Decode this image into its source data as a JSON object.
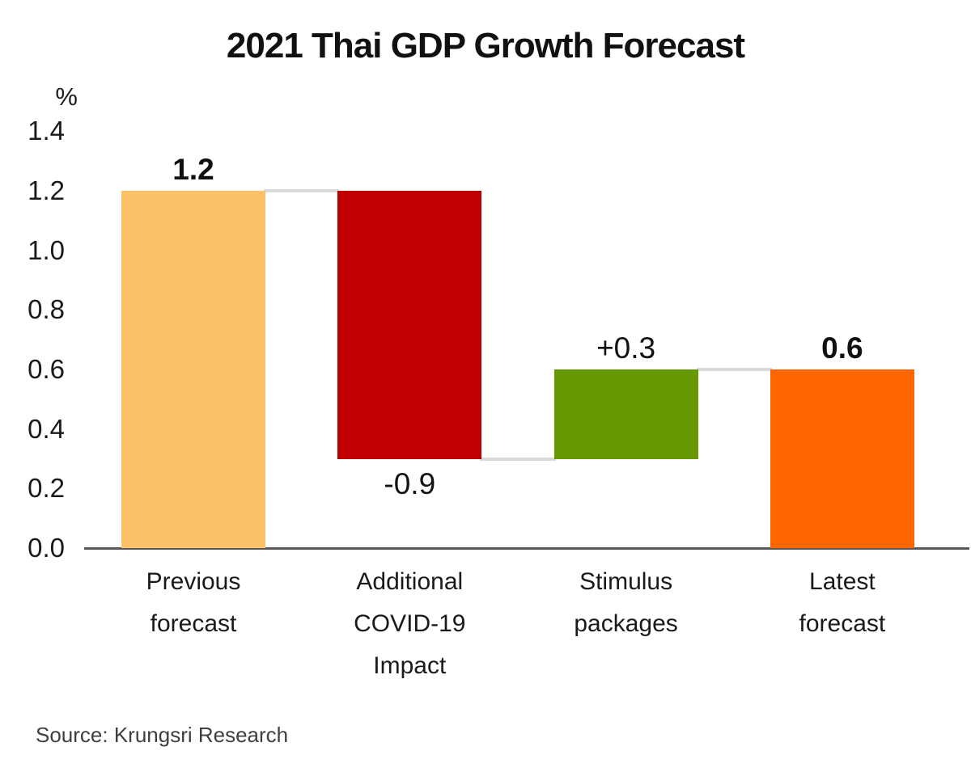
{
  "title": "2021 Thai GDP Growth Forecast",
  "y_axis": {
    "unit_label": "%",
    "ticks": [
      "1.4",
      "1.2",
      "1.0",
      "0.8",
      "0.6",
      "0.4",
      "0.2",
      "0.0"
    ]
  },
  "source": "Source: Krungsri Research",
  "chart_data": {
    "type": "bar",
    "subtype": "waterfall",
    "title": "2021 Thai GDP Growth Forecast",
    "ylabel": "%",
    "ylim": [
      0,
      1.4
    ],
    "y_tick_step": 0.2,
    "grid": false,
    "legend": false,
    "categories": [
      "Previous forecast",
      "Additional COVID-19 Impact",
      "Stimulus packages",
      "Latest forecast"
    ],
    "values": [
      1.2,
      -0.9,
      0.3,
      0.6
    ],
    "bars": [
      {
        "category_lines": [
          "Previous",
          "forecast"
        ],
        "value": 1.2,
        "base": 0,
        "top": 1.2,
        "value_label": "1.2",
        "bold": true,
        "label_position": "above",
        "color": "#FCC066"
      },
      {
        "category_lines": [
          "Additional",
          "COVID-19",
          "Impact"
        ],
        "value": -0.9,
        "base": 0.3,
        "top": 1.2,
        "value_label": "-0.9",
        "bold": false,
        "label_position": "below",
        "color": "#C00000"
      },
      {
        "category_lines": [
          "Stimulus",
          "packages"
        ],
        "value": 0.3,
        "base": 0.3,
        "top": 0.6,
        "value_label": "+0.3",
        "bold": false,
        "label_position": "above",
        "color": "#669900"
      },
      {
        "category_lines": [
          "Latest",
          "forecast"
        ],
        "value": 0.6,
        "base": 0,
        "top": 0.6,
        "value_label": "0.6",
        "bold": true,
        "label_position": "above",
        "color": "#FF6600"
      }
    ],
    "connector_levels": [
      1.2,
      0.3,
      0.6
    ],
    "connector_color": "#D9D9D9",
    "axis_line_color": "#595959"
  }
}
